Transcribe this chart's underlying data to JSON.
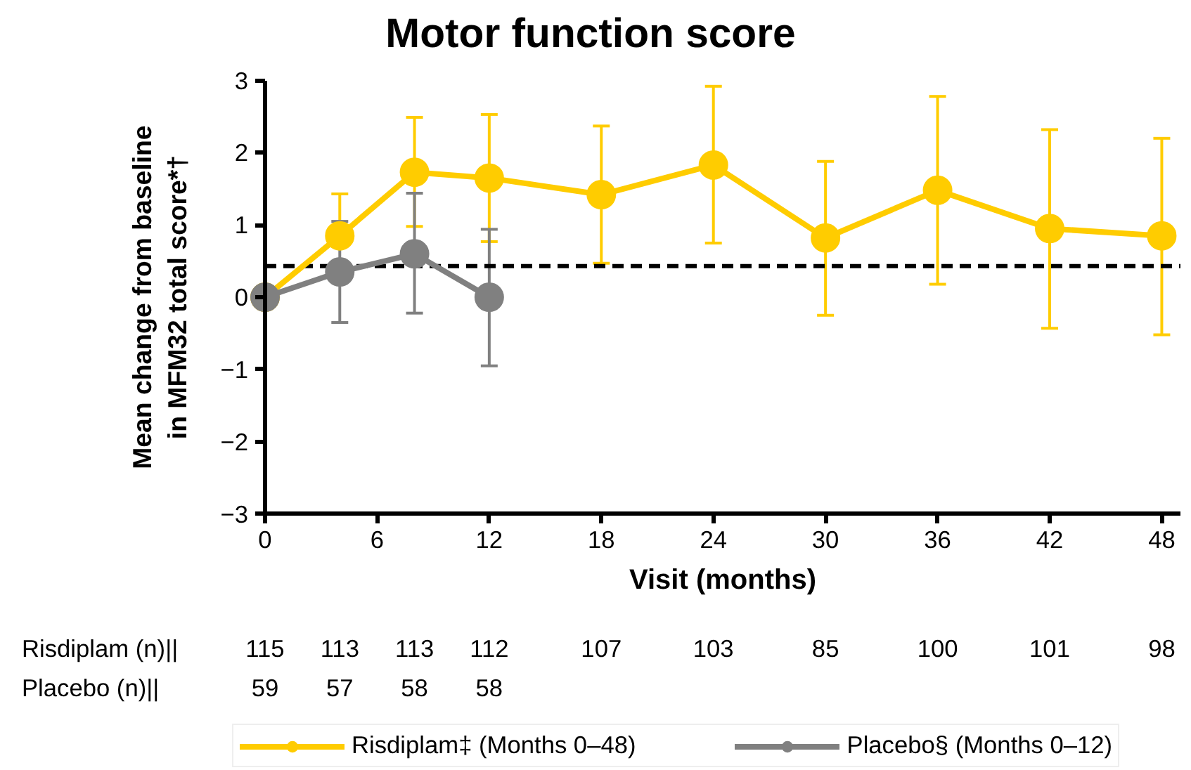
{
  "chart_data": {
    "type": "line",
    "title": "Motor function score",
    "xlabel": "Visit (months)",
    "ylabel": "Mean change from baseline in MFM32 total score*†",
    "xlim": [
      0,
      49
    ],
    "xticks": [
      0,
      6,
      12,
      18,
      24,
      30,
      36,
      42,
      48
    ],
    "ylim": [
      -3,
      3
    ],
    "yticks": [
      -3,
      -2,
      -1,
      0,
      1,
      2,
      3
    ],
    "grid": false,
    "legend": "bottom",
    "marker": "circle",
    "line_style": "solid",
    "ref_lines": [
      {
        "axis": "y",
        "value": 0.43,
        "label": null,
        "color": "#000000",
        "line_style": "dashed"
      }
    ],
    "series": [
      {
        "name": "Risdiplam‡ (Months 0–48)",
        "color": "#ffcc00",
        "x": [
          0,
          4,
          8,
          12,
          18,
          24,
          30,
          36,
          42,
          48
        ],
        "values": [
          0,
          0.85,
          1.73,
          1.65,
          1.42,
          1.83,
          0.82,
          1.48,
          0.95,
          0.85
        ],
        "errors": [
          null,
          [
            0.85,
            1.43
          ],
          [
            0.98,
            2.49
          ],
          [
            0.77,
            2.53
          ],
          [
            0.47,
            2.37
          ],
          [
            0.75,
            2.92
          ],
          [
            -0.25,
            1.88
          ],
          [
            0.18,
            2.78
          ],
          [
            -0.43,
            2.32
          ],
          [
            -0.52,
            2.2
          ]
        ]
      },
      {
        "name": "Placebo§ (Months 0–12)",
        "color": "#808080",
        "x": [
          0,
          4,
          8,
          12
        ],
        "values": [
          0,
          0.35,
          0.6,
          0
        ],
        "errors": [
          null,
          [
            -0.35,
            1.05
          ],
          [
            -0.22,
            1.44
          ],
          [
            -0.95,
            0.94
          ]
        ]
      }
    ],
    "annotations": [
      "Risdiplam (n)||",
      "115",
      "113",
      "113",
      "112",
      "107",
      "103",
      "85",
      "100",
      "101",
      "98",
      "Placebo (n)||",
      "59",
      "57",
      "58",
      "58"
    ]
  }
}
